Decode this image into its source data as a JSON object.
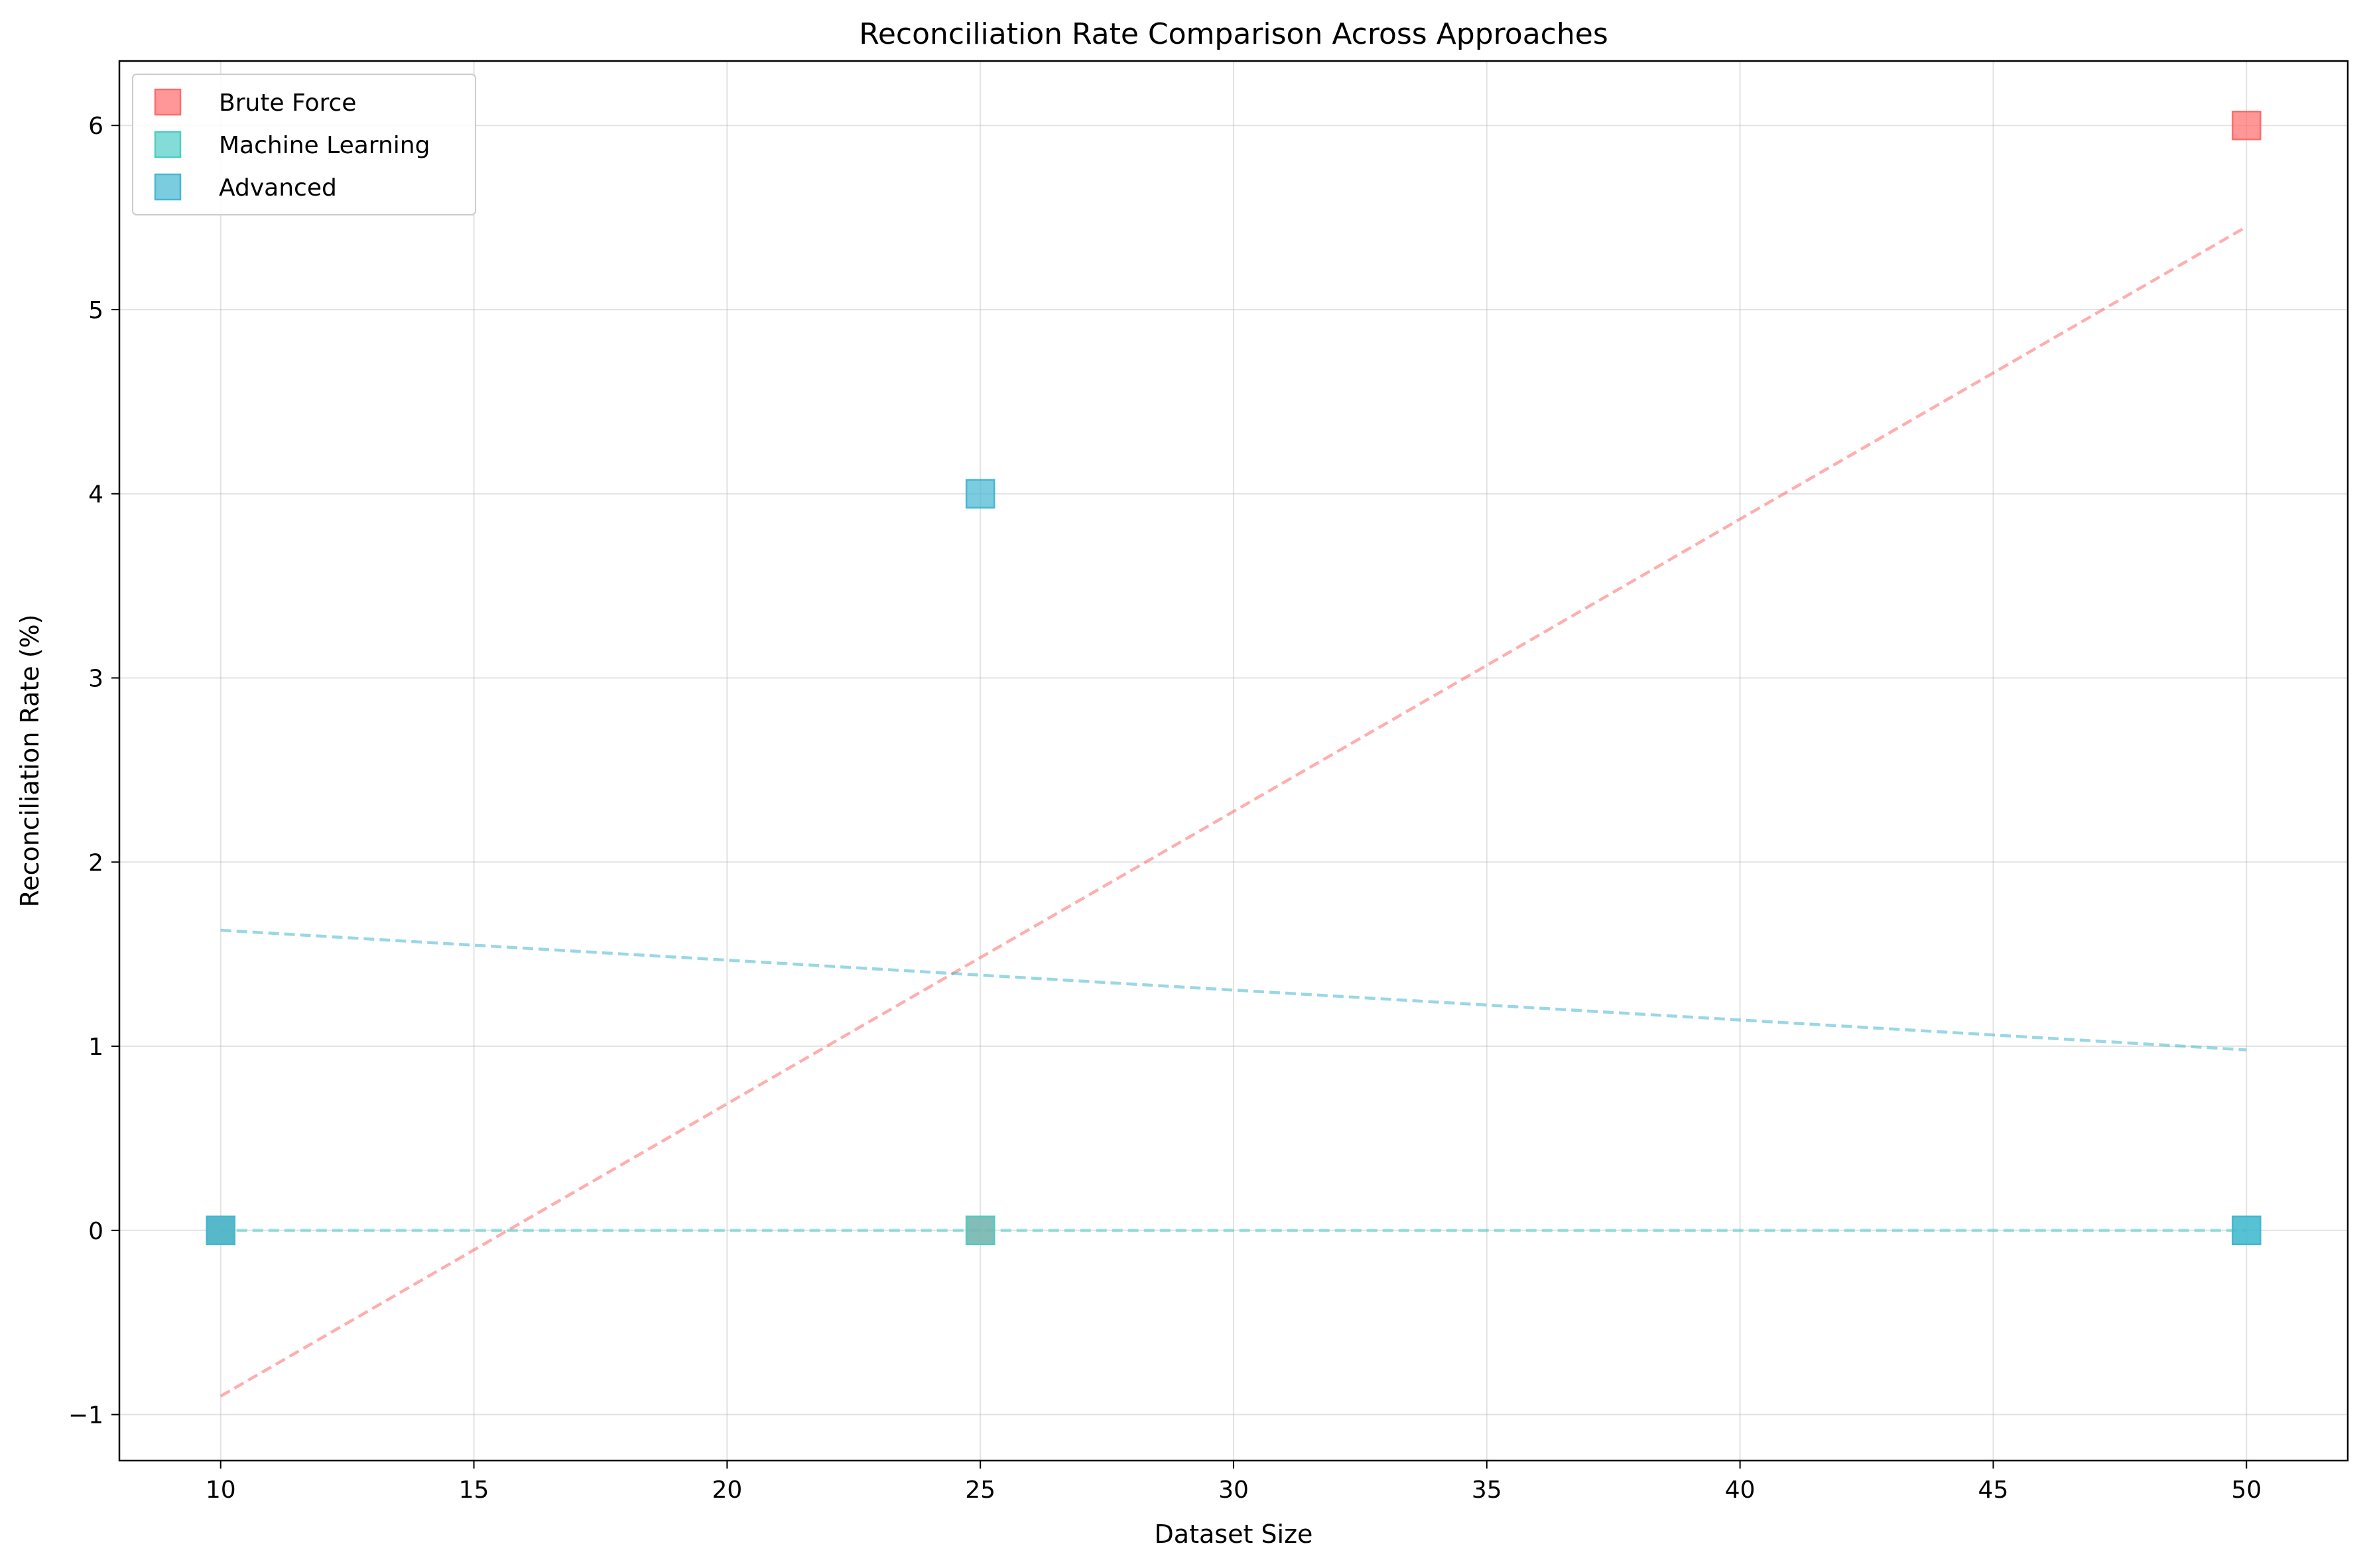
{
  "chart_data": {
    "type": "scatter",
    "title": "Reconciliation Rate Comparison Across Approaches",
    "xlabel": "Dataset Size",
    "ylabel": "Reconciliation Rate (%)",
    "xlim": [
      8,
      52
    ],
    "ylim": [
      -1.25,
      6.35
    ],
    "xticks": [
      10,
      15,
      20,
      25,
      30,
      35,
      40,
      45,
      50
    ],
    "yticks": [
      -1,
      0,
      1,
      2,
      3,
      4,
      5,
      6
    ],
    "grid": true,
    "legend_position": "top-left",
    "marker": "square",
    "series": [
      {
        "name": "Brute Force",
        "color": "#FF6B6B",
        "x": [
          10,
          25,
          50
        ],
        "y": [
          0,
          0,
          6
        ],
        "trend": {
          "x": [
            10,
            50
          ],
          "y": [
            -0.9,
            5.45
          ]
        }
      },
      {
        "name": "Machine Learning",
        "color": "#4ECDC4",
        "x": [
          10,
          25,
          50
        ],
        "y": [
          0,
          0,
          0
        ],
        "trend": {
          "x": [
            10,
            50
          ],
          "y": [
            0,
            0
          ]
        }
      },
      {
        "name": "Advanced",
        "color": "#45B7D1",
        "x": [
          10,
          25,
          50
        ],
        "y": [
          0,
          4,
          0
        ],
        "trend": {
          "x": [
            10,
            50
          ],
          "y": [
            1.63,
            0.98
          ]
        }
      }
    ]
  }
}
